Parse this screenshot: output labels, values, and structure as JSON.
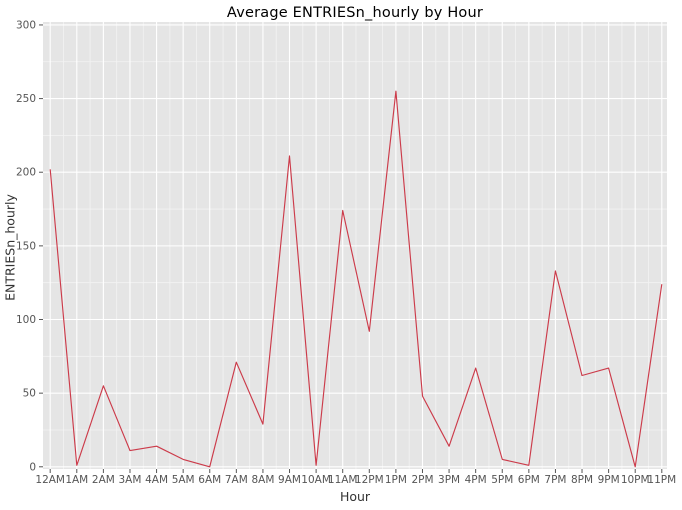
{
  "chart_data": {
    "type": "line",
    "title": "Average ENTRIESn_hourly by Hour",
    "xlabel": "Hour",
    "ylabel": "ENTRIESn_hourly",
    "categories": [
      "12AM",
      "1AM",
      "2AM",
      "3AM",
      "4AM",
      "5AM",
      "6AM",
      "7AM",
      "8AM",
      "9AM",
      "10AM",
      "11AM",
      "12PM",
      "1PM",
      "2PM",
      "3PM",
      "4PM",
      "5PM",
      "6PM",
      "7PM",
      "8PM",
      "9PM",
      "10PM",
      "11PM"
    ],
    "values": [
      202,
      1,
      55,
      11,
      14,
      5,
      0,
      71,
      29,
      211,
      1,
      174,
      92,
      255,
      48,
      14,
      67,
      5,
      1,
      133,
      62,
      67,
      0,
      124
    ],
    "ylim": [
      0,
      300
    ],
    "yticks": [
      0,
      50,
      100,
      150,
      200,
      250,
      300
    ],
    "ytick_labels": [
      "0",
      "50",
      "100",
      "150",
      "200",
      "250",
      "300"
    ],
    "grid": "on",
    "grid_minor": "on",
    "legend": "none",
    "colors": {
      "line": "#CC3B4A",
      "panel_background": "#E5E5E5",
      "grid_major": "#FFFFFF",
      "grid_minor": "#FFFFFF",
      "tick_text": "#555555",
      "axis_title_text": "#333333",
      "title_text": "#000000"
    }
  }
}
